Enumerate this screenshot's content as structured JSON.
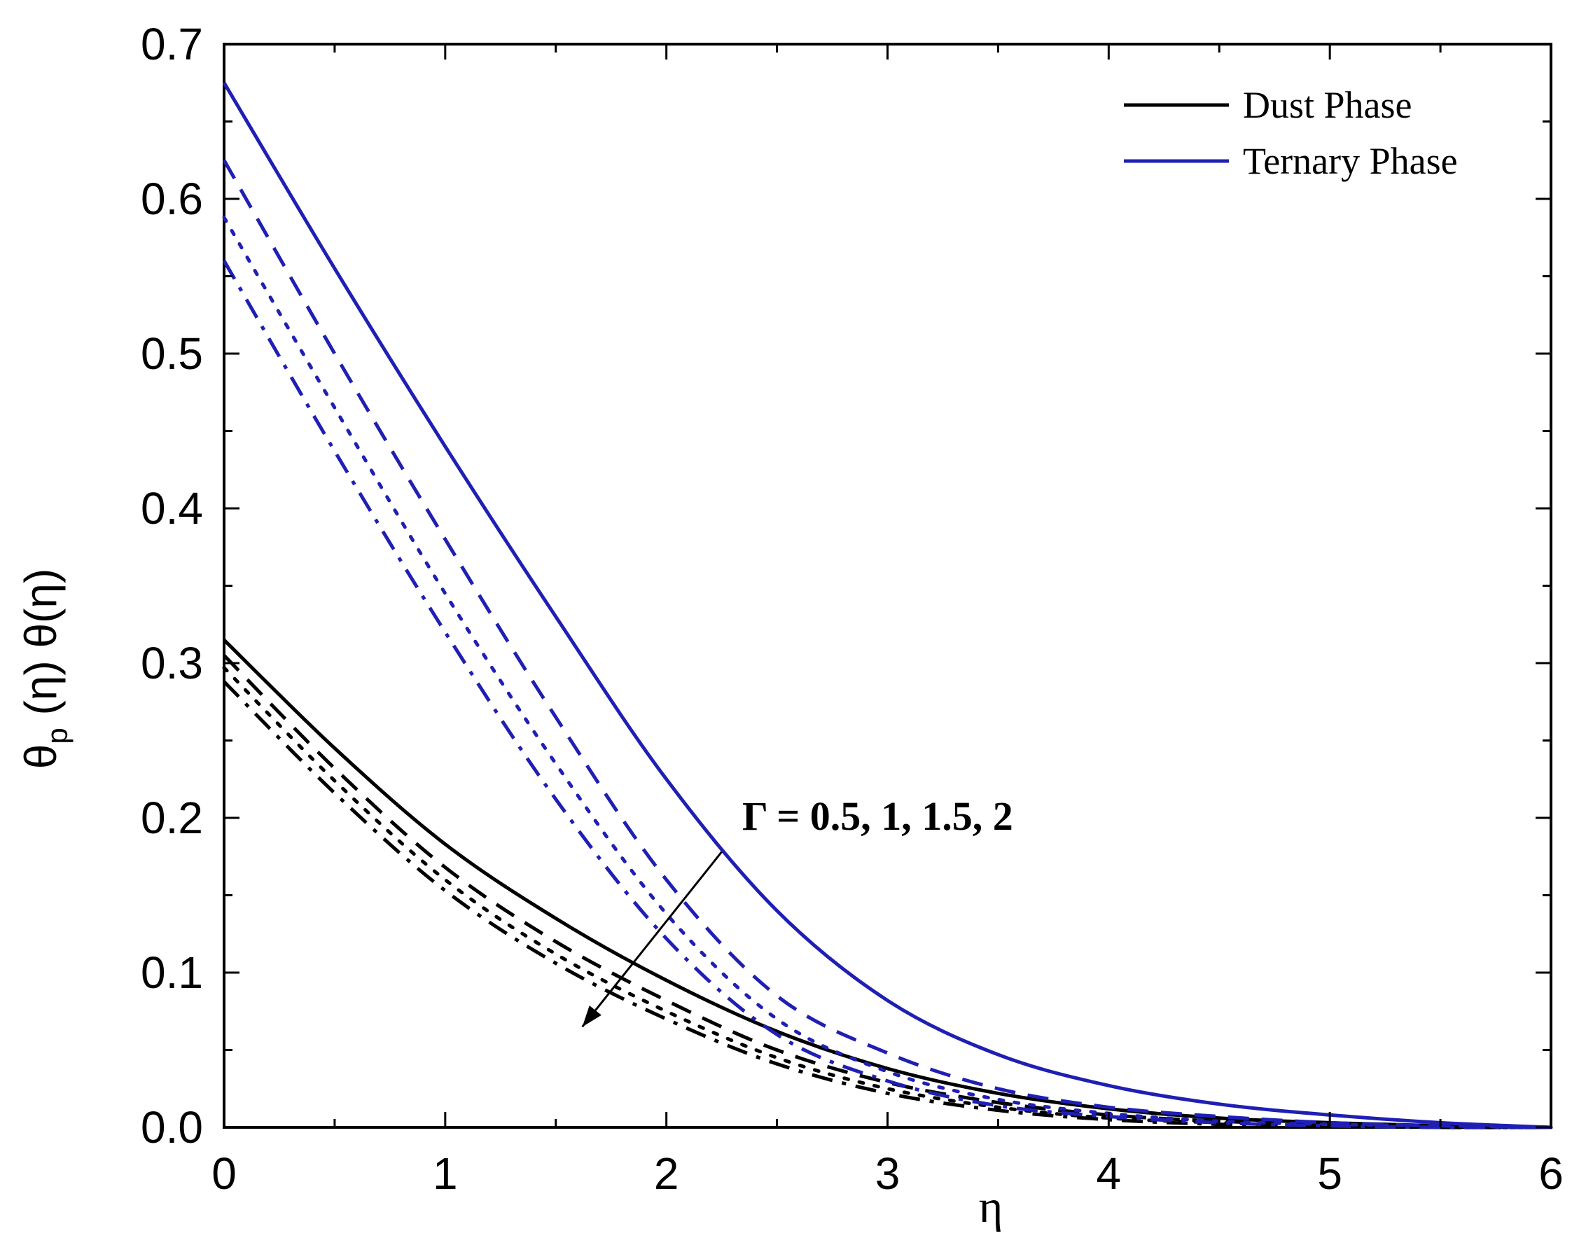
{
  "chart_data": {
    "type": "line",
    "title": "",
    "xlabel": "η",
    "ylabel": {
      "parts": [
        "θ",
        "p",
        " (η) θ(η)"
      ]
    },
    "xlim": [
      0,
      6
    ],
    "ylim": [
      0,
      0.7
    ],
    "xticks": [
      "0",
      "1",
      "2",
      "3",
      "4",
      "5",
      "6"
    ],
    "yticks": [
      "0.0",
      "0.1",
      "0.2",
      "0.3",
      "0.4",
      "0.5",
      "0.6",
      "0.7"
    ],
    "grid": false,
    "legend": {
      "position": "top-right",
      "entries": [
        {
          "label": "Dust Phase",
          "color": "#000000"
        },
        {
          "label": "Ternary Phase",
          "color": "#1f1fb4"
        }
      ]
    },
    "annotation": {
      "text": "Γ = 0.5, 1, 1.5, 2"
    },
    "x": [
      0,
      0.5,
      1,
      1.5,
      2,
      2.5,
      3,
      3.5,
      4,
      4.5,
      5,
      5.5,
      6
    ],
    "series": [
      {
        "group": "Dust Phase",
        "color": "#000000",
        "dash": "solid",
        "values": [
          0.315,
          0.245,
          0.183,
          0.135,
          0.095,
          0.062,
          0.038,
          0.022,
          0.012,
          0.006,
          0.003,
          0.001,
          0
        ]
      },
      {
        "group": "Dust Phase",
        "color": "#000000",
        "dash": "dashed",
        "values": [
          0.305,
          0.232,
          0.168,
          0.12,
          0.082,
          0.05,
          0.029,
          0.016,
          0.008,
          0.004,
          0.002,
          0.001,
          0
        ]
      },
      {
        "group": "Dust Phase",
        "color": "#000000",
        "dash": "dotted",
        "values": [
          0.297,
          0.224,
          0.16,
          0.112,
          0.075,
          0.045,
          0.025,
          0.013,
          0.006,
          0.003,
          0.001,
          0,
          0
        ]
      },
      {
        "group": "Dust Phase",
        "color": "#000000",
        "dash": "dashdot",
        "values": [
          0.288,
          0.216,
          0.153,
          0.106,
          0.07,
          0.041,
          0.022,
          0.011,
          0.005,
          0.002,
          0.001,
          0,
          0
        ]
      },
      {
        "group": "Ternary Phase",
        "color": "#1f1fb4",
        "dash": "solid",
        "values": [
          0.675,
          0.555,
          0.44,
          0.33,
          0.225,
          0.14,
          0.082,
          0.047,
          0.027,
          0.015,
          0.008,
          0.003,
          0
        ]
      },
      {
        "group": "Ternary Phase",
        "color": "#1f1fb4",
        "dash": "dashed",
        "values": [
          0.625,
          0.5,
          0.38,
          0.265,
          0.16,
          0.085,
          0.048,
          0.025,
          0.013,
          0.007,
          0.003,
          0.001,
          0
        ]
      },
      {
        "group": "Ternary Phase",
        "color": "#1f1fb4",
        "dash": "dotted",
        "values": [
          0.588,
          0.465,
          0.345,
          0.235,
          0.138,
          0.07,
          0.036,
          0.018,
          0.009,
          0.004,
          0.002,
          0.001,
          0
        ]
      },
      {
        "group": "Ternary Phase",
        "color": "#1f1fb4",
        "dash": "dashdot",
        "values": [
          0.56,
          0.437,
          0.32,
          0.212,
          0.122,
          0.06,
          0.03,
          0.014,
          0.007,
          0.003,
          0.001,
          0,
          0
        ]
      }
    ]
  }
}
